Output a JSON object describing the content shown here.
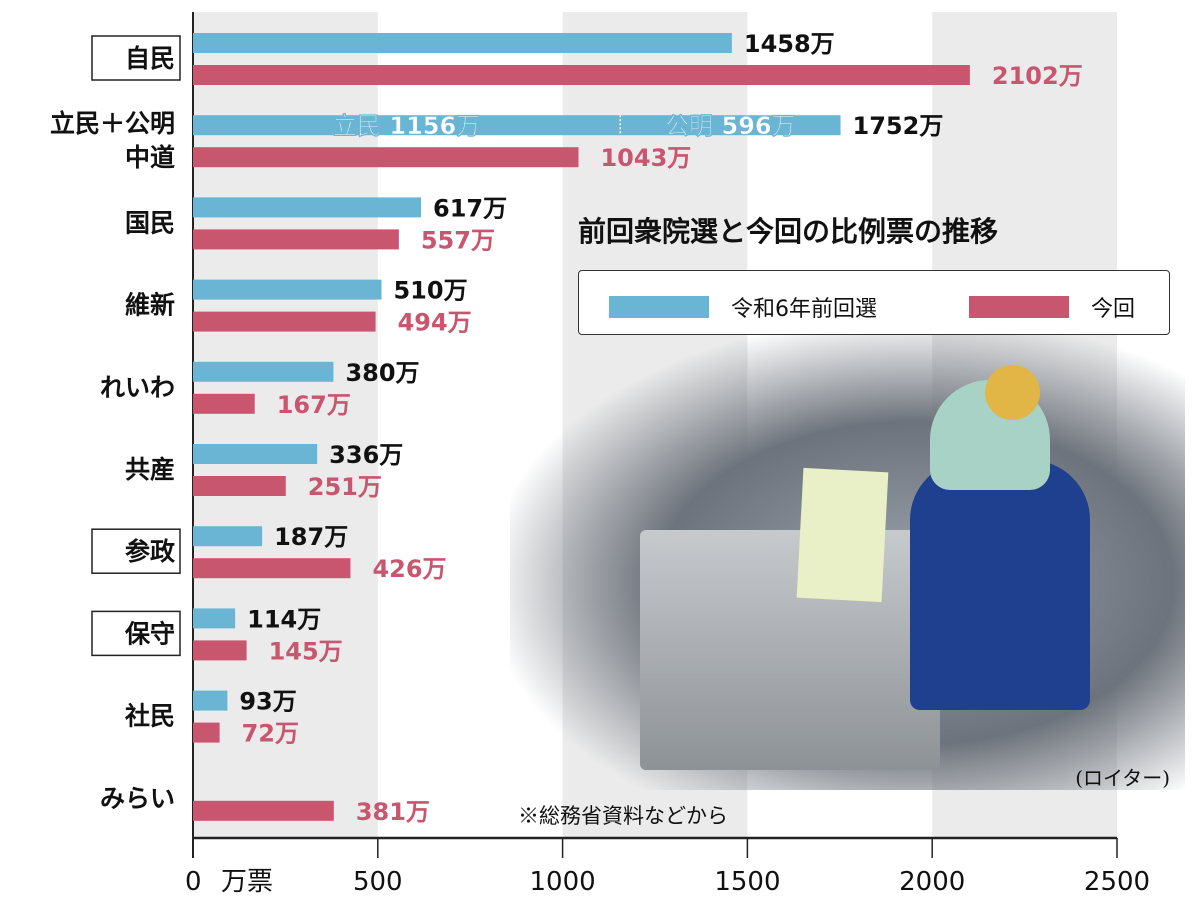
{
  "chart_data": {
    "type": "bar",
    "orientation": "horizontal",
    "title": "前回衆院選と今回の比例票の推移",
    "xlabel": "万票",
    "xlim": [
      0,
      2500
    ],
    "xticks": [
      0,
      500,
      1000,
      1500,
      2000,
      2500
    ],
    "grid": "alternating vertical bands",
    "legend_placement": "top-right",
    "categories": [
      "自民",
      "立民＋公明\n中道",
      "国民",
      "維新",
      "れいわ",
      "共産",
      "参政",
      "保守",
      "社民",
      "みらい"
    ],
    "boxed_categories": [
      "自民",
      "参政",
      "保守"
    ],
    "series": [
      {
        "name": "令和6年前回選",
        "color": "#6bb5d4",
        "values": [
          1458,
          1752,
          617,
          510,
          380,
          336,
          187,
          114,
          93,
          null
        ],
        "labels": [
          "1458万",
          "1752万",
          "617万",
          "510万",
          "380万",
          "336万",
          "187万",
          "114万",
          "93万",
          ""
        ]
      },
      {
        "name": "今回",
        "color": "#c9566f",
        "values": [
          2102,
          1043,
          557,
          494,
          167,
          251,
          426,
          145,
          72,
          381
        ],
        "labels": [
          "2102万",
          "1043万",
          "557万",
          "494万",
          "167万",
          "251万",
          "426万",
          "145万",
          "72万",
          "381万"
        ]
      }
    ],
    "segments": [
      {
        "label": "立民 1156万",
        "value": 1156
      },
      {
        "label": "公明 596万",
        "value": 596
      }
    ],
    "note": "※総務省資料などから"
  },
  "photo": {
    "credit": "(ロイター)"
  }
}
